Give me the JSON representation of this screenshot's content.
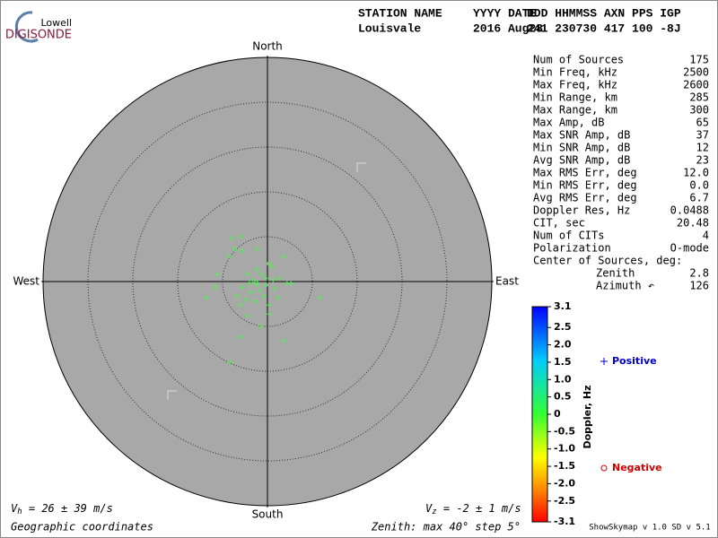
{
  "chart_data": {
    "type": "skymap",
    "logo": {
      "top": "Lowell",
      "bottom": "DIGISONDE"
    },
    "header": {
      "labels": [
        "STATION NAME",
        "YYYY DATE",
        "DDD HHMMSS AXN PPS IGP"
      ],
      "values": [
        "Louisvale",
        "2016 Aug28",
        "241 230730 417 100 -8J"
      ]
    },
    "directions": {
      "north": "North",
      "south": "South",
      "east": "East",
      "west": "West"
    },
    "xlim": [
      -40,
      40
    ],
    "ylim": [
      -40,
      40
    ],
    "series": [
      {
        "name": "Positive",
        "marker": "+",
        "color": "#0000cc",
        "point_color": "#55ee55",
        "x": [
          -6.4,
          -1.9,
          0.8,
          3.5,
          4.2,
          9.4,
          -10.9,
          -9.0,
          -6.7,
          2.9,
          -3.5,
          0.3,
          -4.5,
          -3.2,
          -2.6,
          -1.9,
          -1.3,
          -2.9,
          -3.8,
          -0.6,
          1.3,
          -1.0,
          -3.5,
          0.3,
          2.2,
          1.0,
          -0.3,
          -2.2
        ],
        "y": [
          7.7,
          5.8,
          2.6,
          -0.3,
          -0.3,
          -2.9,
          -2.9,
          1.3,
          -14.4,
          -10.6,
          -6.1,
          -5.8,
          -1.0,
          -0.3,
          0.3,
          -0.6,
          -1.6,
          -1.9,
          -3.2,
          -2.6,
          -1.3,
          1.3,
          1.3,
          -4.2,
          0.6,
          0.3,
          0.6,
          -3.5
        ]
      },
      {
        "name": "Negative",
        "marker": "o",
        "color": "#cc0000",
        "point_color": "#55ee55",
        "x": [
          -4.8,
          -5.8,
          -4.5,
          -6.9,
          0.3,
          2.9,
          -9.3,
          -4.8,
          -1.3,
          -5.4,
          -0.3,
          1.9,
          -1.9,
          -4.8,
          -2.0
        ],
        "y": [
          8.0,
          5.8,
          5.4,
          4.5,
          3.2,
          4.5,
          -1.0,
          -9.9,
          -8.0,
          -2.6,
          -0.6,
          -2.9,
          2.2,
          -4.2,
          -0.2
        ]
      }
    ],
    "stats": [
      [
        "Num of Sources",
        "175"
      ],
      [
        "Min Freq, kHz",
        "2500"
      ],
      [
        "Max Freq, kHz",
        "2600"
      ],
      [
        "Min Range, km",
        "285"
      ],
      [
        "Max Range, km",
        "300"
      ],
      [
        "Max Amp, dB",
        "65"
      ],
      [
        "Max SNR Amp, dB",
        "37"
      ],
      [
        "Min SNR Amp, dB",
        "12"
      ],
      [
        "Avg SNR Amp, dB",
        "23"
      ],
      [
        "Max RMS Err, deg",
        "12.0"
      ],
      [
        "Min RMS Err, deg",
        "0.0"
      ],
      [
        "Avg RMS Err, deg",
        "6.7"
      ],
      [
        "Doppler Res, Hz",
        "0.0488"
      ],
      [
        "CIT, sec",
        "20.48"
      ],
      [
        "Num of CITs",
        "4"
      ],
      [
        "Polarization",
        "O-mode"
      ]
    ],
    "center": {
      "title": "Center of Sources, deg:",
      "rows": [
        [
          "Zenith",
          "2.8"
        ],
        [
          "Azimuth ↶",
          "126"
        ]
      ]
    },
    "colorbar": {
      "label": "Doppler, Hz",
      "lim": [
        -3.1,
        3.1
      ],
      "ticks": [
        3.1,
        2.5,
        {
          "value": 2,
          "label": "2.0"
        },
        1.5,
        {
          "value": 1,
          "label": "1.0"
        },
        0.5,
        0,
        -0.5,
        {
          "value": -1,
          "label": "-1.0"
        },
        -1.5,
        {
          "value": -2,
          "label": "-2.0"
        },
        -2.5,
        -3.1
      ]
    },
    "footer": {
      "vh": [
        "V",
        "h",
        " = 26 ± 39 m/s"
      ],
      "vz": [
        "V",
        "z",
        " = -2 ± 1 m/s"
      ],
      "coords": "Geographic coordinates",
      "zenith": "Zenith: max 40°  step 5°",
      "version": "ShowSkymap v 1.0  SD v 5.1"
    }
  }
}
